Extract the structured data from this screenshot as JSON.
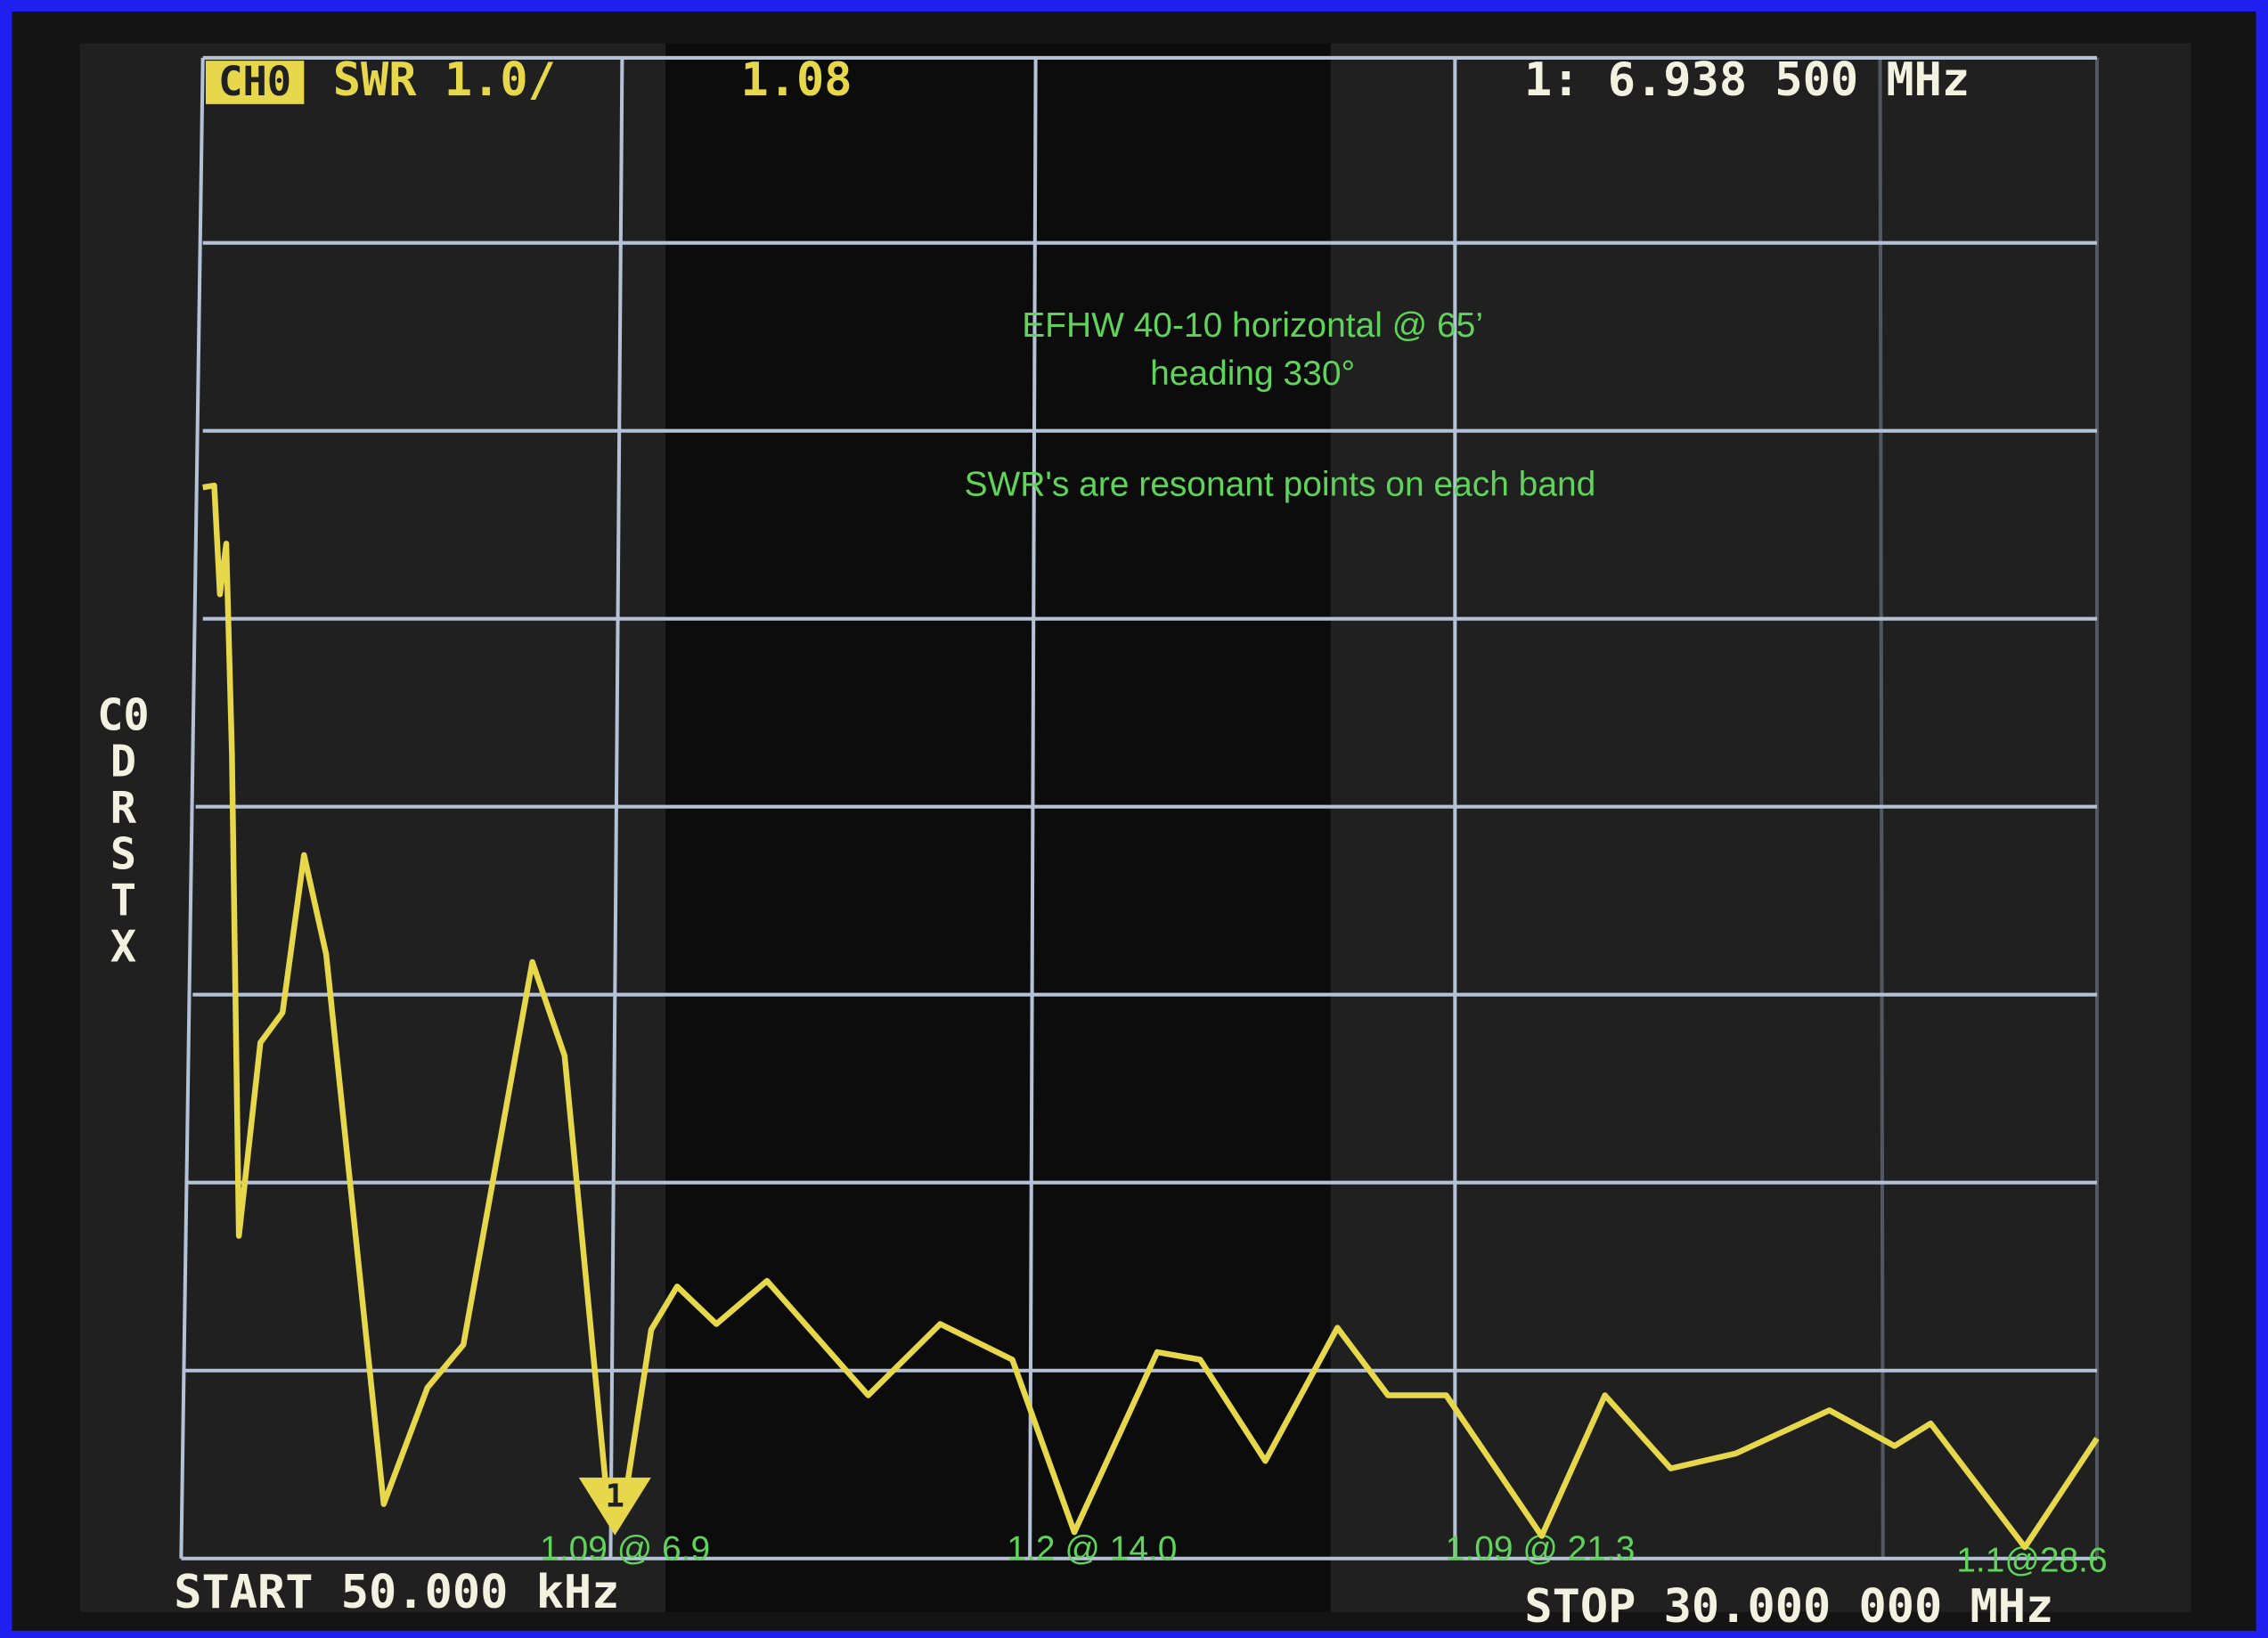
{
  "chart_data": {
    "type": "line",
    "channel": "CH0",
    "format": "SWR 1.0/",
    "reading": "1.08",
    "marker_readout": "1: 6.938 500 MHz",
    "side_labels": [
      "C0",
      "D",
      "R",
      "S",
      "T",
      "X"
    ],
    "start_label": "START 50.000 kHz",
    "stop_label": "STOP 30.000 000 MHz",
    "marker_symbol": "1",
    "annotations": [
      "EFHW 40-10 horizontal @ 65’",
      "heading 330°",
      "SWR's are resonant points on each band"
    ],
    "point_labels": [
      "1.09 @ 6.9",
      "1.2 @ 14.0",
      "1.09 @ 21.3",
      "1.1@28.6"
    ],
    "xlim": [
      0.05,
      30
    ],
    "ylim": [
      1,
      9
    ],
    "series": [
      {
        "color": "#e6d84a",
        "x": [
          0.05,
          0.23,
          0.32,
          0.42,
          0.51,
          0.62,
          0.96,
          1.31,
          1.65,
          2.0,
          2.91,
          3.6,
          4.17,
          5.26,
          5.77,
          6.45,
          6.68,
          7.14,
          7.55,
          8.17,
          8.97,
          10.57,
          11.71,
          12.85,
          13.83,
          15.14,
          15.82,
          16.85,
          17.99,
          18.79,
          19.71,
          21.22,
          22.22,
          23.26,
          24.29,
          25.77,
          26.8,
          27.37,
          28.86,
          30.0
        ],
        "values": [
          6.71,
          6.72,
          6.14,
          6.41,
          5.29,
          2.72,
          3.75,
          3.91,
          4.75,
          4.22,
          1.29,
          1.91,
          2.14,
          4.18,
          3.68,
          1.29,
          1.22,
          2.22,
          2.45,
          2.25,
          2.48,
          1.87,
          2.25,
          2.06,
          1.14,
          2.1,
          2.06,
          1.52,
          2.23,
          1.87,
          1.87,
          1.12,
          1.87,
          1.48,
          1.56,
          1.79,
          1.6,
          1.72,
          1.06,
          1.64
        ]
      }
    ]
  }
}
